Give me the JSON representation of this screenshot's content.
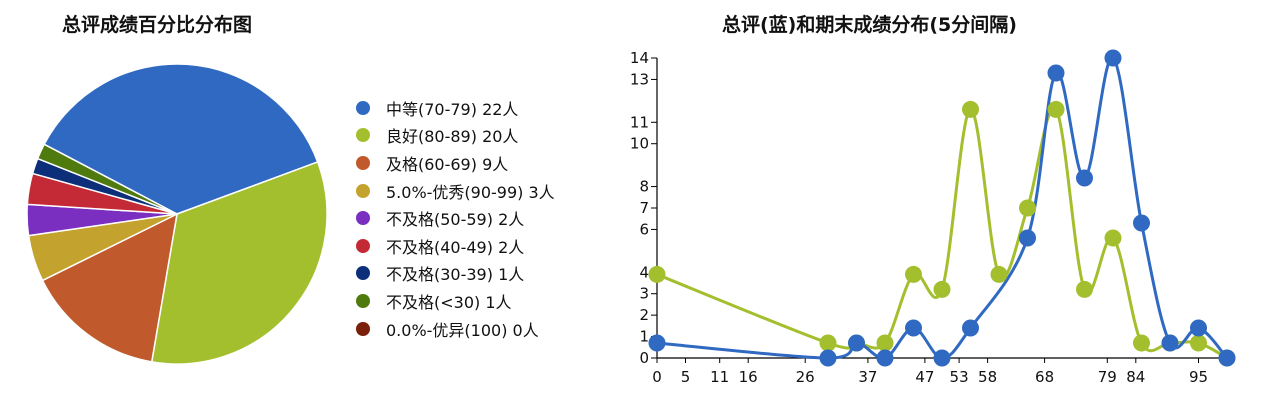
{
  "chart_data": [
    {
      "type": "pie",
      "title": "总评成绩百分比分布图",
      "slices": [
        {
          "label": "中等(70-79) 22人",
          "value": 22,
          "color": "#2f69c1"
        },
        {
          "label": "良好(80-89) 20人",
          "value": 20,
          "color": "#a3bf2e"
        },
        {
          "label": "及格(60-69) 9人",
          "value": 9,
          "color": "#c0592c"
        },
        {
          "label": "5.0%-优秀(90-99) 3人",
          "value": 3,
          "color": "#c4a22e"
        },
        {
          "label": "不及格(50-59) 2人",
          "value": 2,
          "color": "#7a2fc1"
        },
        {
          "label": "不及格(40-49) 2人",
          "value": 2,
          "color": "#c42a36"
        },
        {
          "label": "不及格(30-39) 1人",
          "value": 1,
          "color": "#0d2f7a"
        },
        {
          "label": "不及格(<30) 1人",
          "value": 1,
          "color": "#4f7a0e"
        },
        {
          "label": "0.0%-优异(100) 0人",
          "value": 0,
          "color": "#7a1f0a"
        }
      ],
      "legend_position": "right"
    },
    {
      "type": "line",
      "title": "总评(蓝)和期末成绩分布(5分间隔)",
      "xlim": [
        0,
        100
      ],
      "ylim": [
        0,
        14
      ],
      "x_tick_labels": [
        "0",
        "5",
        "11",
        "16",
        "26",
        "37",
        "47",
        "53",
        "58",
        "68",
        "79",
        "84",
        "95"
      ],
      "y_tick_labels": [
        "0",
        "1",
        "2",
        "3",
        "4",
        "6",
        "7",
        "8",
        "10",
        "11",
        "13",
        "14"
      ],
      "series": [
        {
          "color": "#2f69c1",
          "smooth": true,
          "points": [
            [
              0,
              0.7
            ],
            [
              30,
              0
            ],
            [
              35,
              0.7
            ],
            [
              40,
              0
            ],
            [
              45,
              1.4
            ],
            [
              50,
              0
            ],
            [
              55,
              1.4
            ],
            [
              65,
              5.6
            ],
            [
              70,
              13.3
            ],
            [
              75,
              8.4
            ],
            [
              80,
              14
            ],
            [
              85,
              6.3
            ],
            [
              90,
              0.7
            ],
            [
              95,
              1.4
            ],
            [
              100,
              0
            ]
          ]
        },
        {
          "color": "#a3bf2e",
          "smooth": true,
          "points": [
            [
              0,
              3.9
            ],
            [
              30,
              0.7
            ],
            [
              35,
              0.7
            ],
            [
              40,
              0.7
            ],
            [
              45,
              3.9
            ],
            [
              50,
              3.2
            ],
            [
              55,
              11.6
            ],
            [
              60,
              3.9
            ],
            [
              65,
              7
            ],
            [
              70,
              11.6
            ],
            [
              75,
              3.2
            ],
            [
              80,
              5.6
            ],
            [
              85,
              0.7
            ],
            [
              90,
              0.7
            ],
            [
              95,
              0.7
            ],
            [
              100,
              0
            ]
          ]
        }
      ]
    }
  ]
}
